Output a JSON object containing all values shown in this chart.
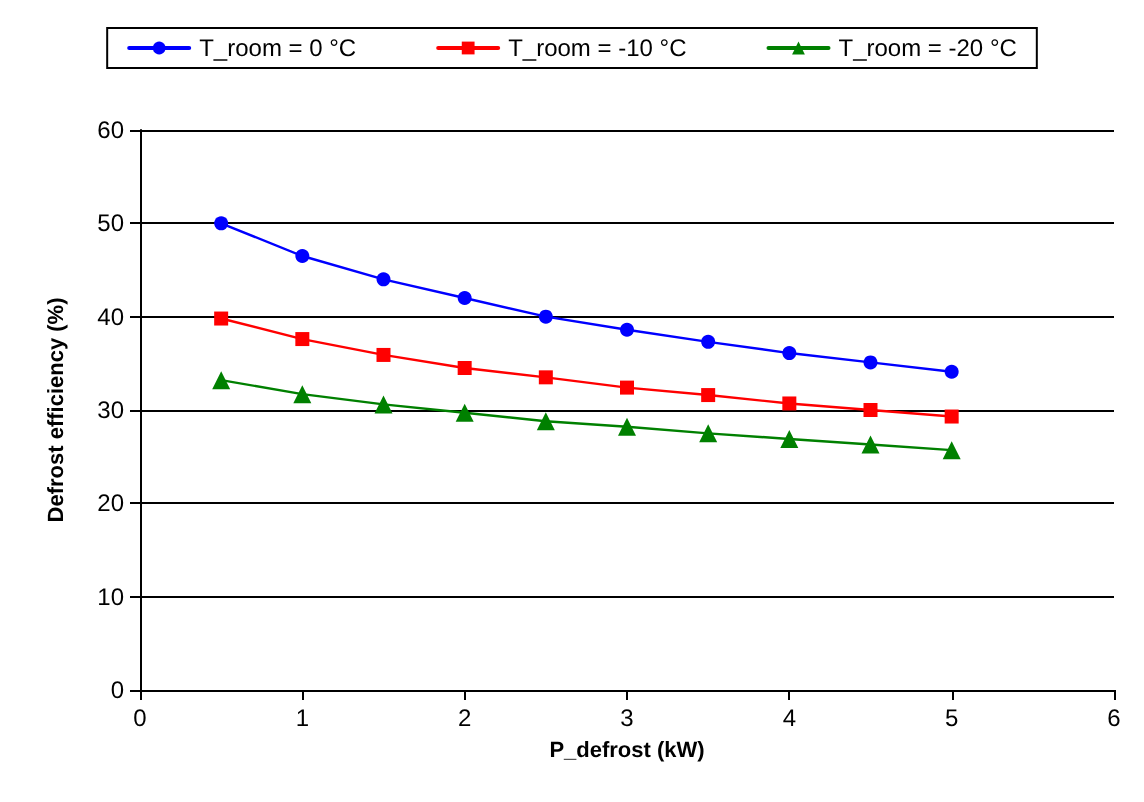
{
  "chart_data": {
    "type": "line",
    "xlabel": "P_defrost (kW)",
    "ylabel": "Defrost efficiency (%)",
    "x": [
      0.5,
      1,
      1.5,
      2,
      2.5,
      3,
      3.5,
      4,
      4.5,
      5
    ],
    "series": [
      {
        "name": "T_room = 0 °C",
        "color": "#0000ff",
        "marker": "circle",
        "values": [
          50,
          46.5,
          44,
          42,
          40,
          38.6,
          37.3,
          36.1,
          35.1,
          34.1
        ]
      },
      {
        "name": "T_room = -10 °C",
        "color": "#ff0000",
        "marker": "square",
        "values": [
          39.8,
          37.6,
          35.9,
          34.5,
          33.5,
          32.4,
          31.6,
          30.7,
          30,
          29.3
        ]
      },
      {
        "name": "T_room = -20 °C",
        "color": "#008000",
        "marker": "triangle",
        "values": [
          33.2,
          31.7,
          30.6,
          29.7,
          28.8,
          28.2,
          27.5,
          26.9,
          26.3,
          25.7
        ]
      }
    ],
    "xlim": [
      0,
      6
    ],
    "xticks": [
      0,
      1,
      2,
      3,
      4,
      5,
      6
    ],
    "ylim": [
      0,
      60
    ],
    "yticks": [
      0,
      10,
      20,
      30,
      40,
      50,
      60
    ],
    "grid": "y",
    "legend": "top",
    "line_style": "solid"
  }
}
